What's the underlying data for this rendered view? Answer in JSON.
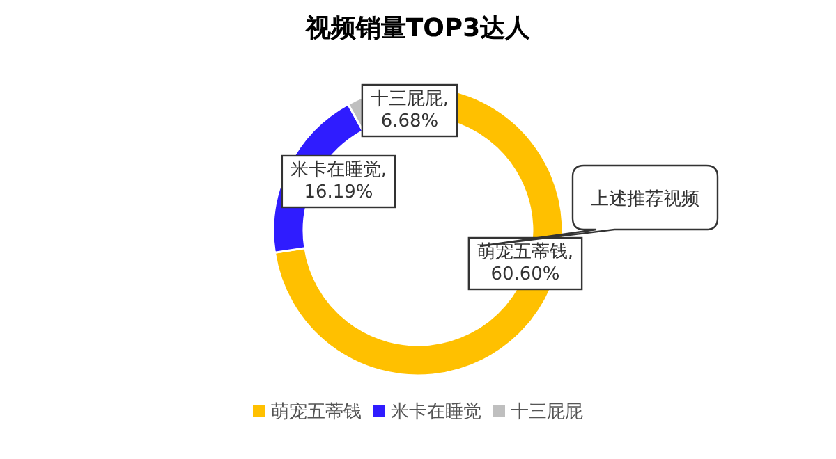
{
  "chart_data": {
    "type": "donut",
    "title": "视频销量TOP3达人",
    "categories": [
      "萌宠五蒂钱",
      "米卡在睡觉",
      "十三屁屁"
    ],
    "values": [
      60.6,
      16.19,
      6.68
    ],
    "colors": [
      "#ffc000",
      "#2f1cff",
      "#bfbfbf"
    ],
    "value_labels": [
      "萌宠五蒂钱,\n60.60%",
      "米卡在睡觉,\n16.19%",
      "十三屁屁,\n6.68%"
    ],
    "annotations": [
      "上述推荐视频"
    ],
    "legend": "bottom"
  }
}
